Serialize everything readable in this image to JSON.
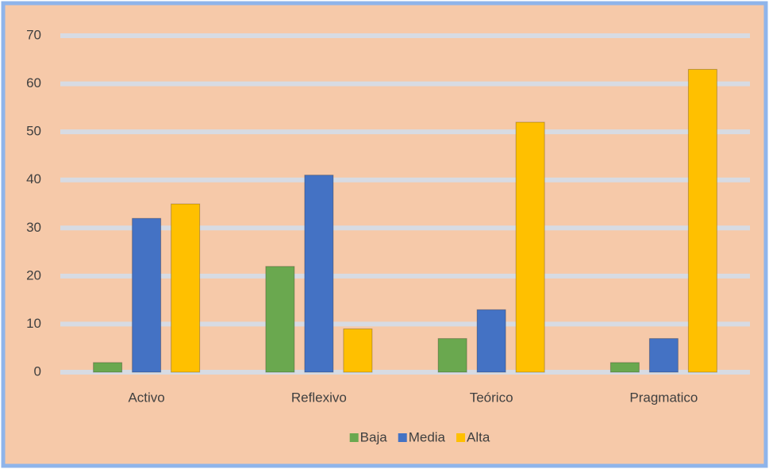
{
  "chart_data": {
    "type": "bar",
    "categories": [
      "Activo",
      "Reflexivo",
      "Teórico",
      "Pragmatico"
    ],
    "series": [
      {
        "name": "Baja",
        "color": "#6aa84f",
        "values": [
          2,
          22,
          7,
          2
        ]
      },
      {
        "name": "Media",
        "color": "#4472c4",
        "values": [
          32,
          41,
          13,
          7
        ]
      },
      {
        "name": "Alta",
        "color": "#ffc000",
        "values": [
          35,
          9,
          52,
          63
        ]
      }
    ],
    "ylim": [
      0,
      70
    ],
    "yticks": [
      0,
      10,
      20,
      30,
      40,
      50,
      60,
      70
    ],
    "grid": true,
    "legend": "bottom"
  }
}
